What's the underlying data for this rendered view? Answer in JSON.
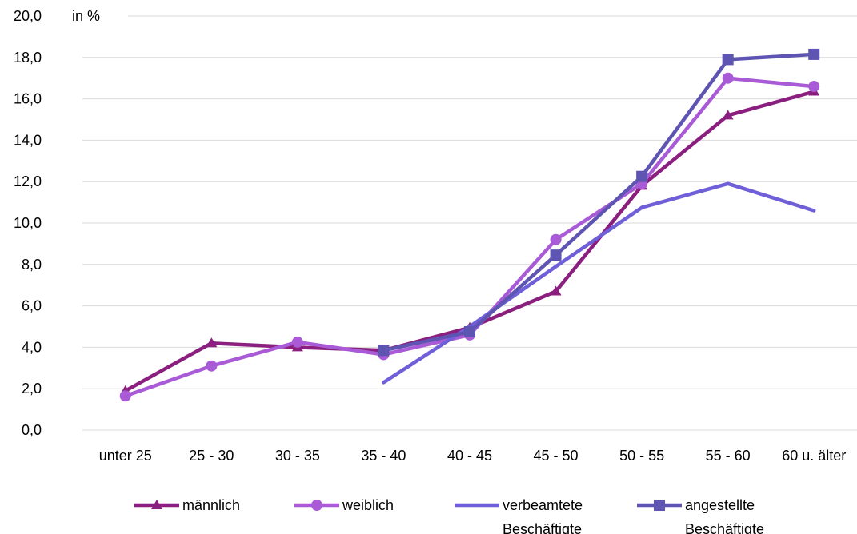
{
  "chart_data": {
    "type": "line",
    "unit_label": "in %",
    "categories": [
      "unter 25",
      "25 - 30",
      "30 - 35",
      "35 - 40",
      "40 - 45",
      "45 - 50",
      "50 - 55",
      "55 - 60",
      "60 u. älter"
    ],
    "y_ticks": [
      "0,0",
      "2,0",
      "4,0",
      "6,0",
      "8,0",
      "10,0",
      "12,0",
      "14,0",
      "16,0",
      "18,0",
      "20,0"
    ],
    "ylim": [
      0,
      20
    ],
    "grid": true,
    "legend_position": "bottom",
    "series": [
      {
        "name": "männlich",
        "color": "#8B1F7F",
        "marker": "triangle",
        "values": [
          1.9,
          4.2,
          4.0,
          3.85,
          4.95,
          6.7,
          11.8,
          15.2,
          16.35
        ]
      },
      {
        "name": "weiblich",
        "color": "#A95AD6",
        "marker": "circle",
        "values": [
          1.65,
          3.1,
          4.25,
          3.65,
          4.6,
          9.2,
          11.9,
          17.0,
          16.6
        ]
      },
      {
        "name": "verbeamtete Beschäftigte",
        "color": "#6F5FD8",
        "marker": "none",
        "values": [
          null,
          null,
          null,
          2.3,
          5.0,
          7.9,
          10.75,
          11.9,
          10.6
        ]
      },
      {
        "name": "angestellte Beschäftigte",
        "color": "#5E55B2",
        "marker": "square",
        "values": [
          null,
          null,
          null,
          3.85,
          4.75,
          8.45,
          12.25,
          17.9,
          18.15
        ]
      }
    ]
  }
}
